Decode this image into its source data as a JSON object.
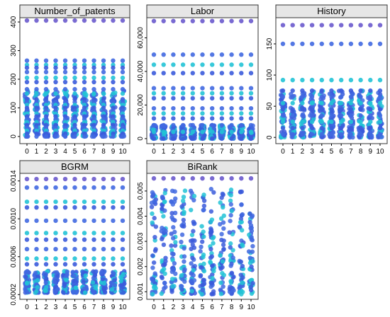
{
  "figure": {
    "layout": "2 rows x 3 columns facet grid, last cell empty",
    "strip_fill": "#e6e6e6",
    "border_color": "#333333",
    "point_colors": [
      "#3b5bdb",
      "#4169e1",
      "#22c3d6",
      "#6a5acd",
      "#c2185b"
    ]
  },
  "chart_data": [
    {
      "type": "scatter",
      "title": "Number_of_patents",
      "categories": [
        "0",
        "1",
        "2",
        "3",
        "4",
        "5",
        "6",
        "7",
        "8",
        "9",
        "10"
      ],
      "yticks": [
        "0",
        "100",
        "200",
        "300",
        "400"
      ],
      "ylim": [
        -25,
        415
      ],
      "levels": [
        405,
        265,
        250,
        240,
        225,
        205,
        190,
        165,
        150,
        130,
        120,
        110,
        100,
        90,
        80,
        70,
        60,
        50,
        40,
        30,
        20,
        10,
        0
      ],
      "dense_range": [
        0,
        160
      ]
    },
    {
      "type": "scatter",
      "title": "Labor",
      "categories": [
        "0",
        "1",
        "2",
        "3",
        "4",
        "5",
        "6",
        "7",
        "8",
        "9",
        "10"
      ],
      "yticks": [
        "0",
        "20,000",
        "40,000",
        "60,000"
      ],
      "ylim": [
        -3000,
        72000
      ],
      "levels": [
        70000,
        50000,
        44000,
        39000,
        30000,
        27000,
        24000,
        18000,
        15000,
        12000,
        8000,
        4000,
        0
      ],
      "dense_range": [
        0,
        8000
      ]
    },
    {
      "type": "scatter",
      "title": "History",
      "categories": [
        "0",
        "1",
        "2",
        "3",
        "4",
        "5",
        "6",
        "7",
        "8",
        "9",
        "10"
      ],
      "yticks": [
        "0",
        "50",
        "100",
        "150"
      ],
      "ylim": [
        -10,
        192
      ],
      "levels": [
        180,
        150,
        92,
        75,
        65,
        55,
        45,
        35,
        25,
        15,
        5
      ],
      "dense_range": [
        0,
        75
      ]
    },
    {
      "type": "scatter",
      "title": "BGRM",
      "categories": [
        "0",
        "1",
        "2",
        "3",
        "4",
        "5",
        "6",
        "7",
        "8",
        "9",
        "10"
      ],
      "yticks": [
        "0.0002",
        "0.0006",
        "0.0010",
        "0.0014"
      ],
      "ylim": [
        0.00015,
        0.00148
      ],
      "levels": [
        0.00142,
        0.00133,
        0.00118,
        0.00112,
        0.00098,
        0.00085,
        0.00078,
        0.00068,
        0.00058,
        0.00052
      ],
      "dense_range": [
        0.00022,
        0.00045
      ]
    },
    {
      "type": "scatter",
      "title": "BiRank",
      "categories": [
        "0",
        "1",
        "2",
        "3",
        "4",
        "5",
        "6",
        "7",
        "8",
        "9",
        "10"
      ],
      "yticks": [
        "0.001",
        "0.002",
        "0.003",
        "0.004",
        "0.005"
      ],
      "ylim": [
        0.0007,
        0.0057
      ],
      "levels": [
        0.0055
      ],
      "dense_range": [
        0.0009,
        0.0051
      ]
    }
  ]
}
